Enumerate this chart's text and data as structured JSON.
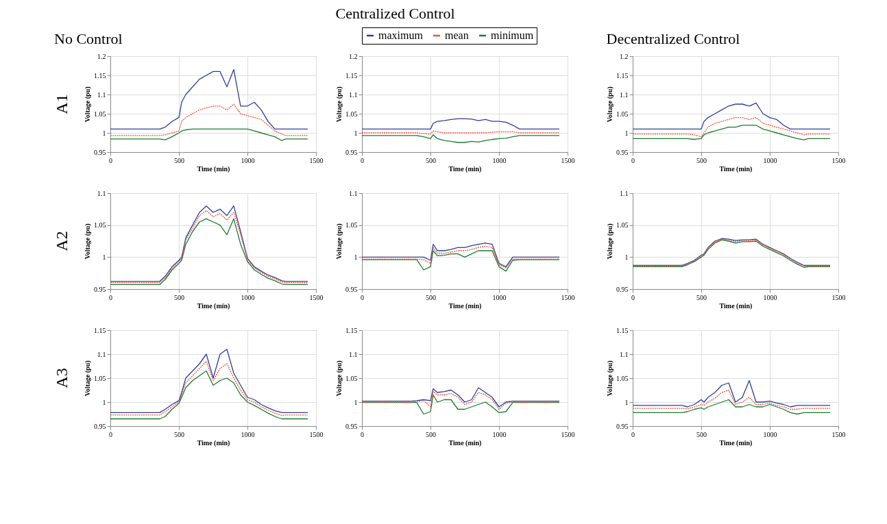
{
  "chart_data": [
    {
      "type": "line",
      "title": "No Control",
      "annotations": [
        "A1"
      ],
      "xlabel": "Time (min)",
      "ylabel": "Voltage (pu)",
      "x": [
        0,
        360,
        400,
        450,
        500,
        520,
        550,
        600,
        650,
        700,
        750,
        800,
        850,
        900,
        950,
        1000,
        1050,
        1100,
        1150,
        1200,
        1250,
        1280,
        1440
      ],
      "xlim": [
        0,
        1500
      ],
      "xticks": [
        0,
        500,
        1000,
        1500
      ],
      "ylim": [
        0.95,
        1.2
      ],
      "yticks": [
        0.95,
        1,
        1.05,
        1.1,
        1.15,
        1.2
      ],
      "grid": true,
      "series": [
        {
          "color": "#2b3d9f",
          "line_style": "solid",
          "values": [
            1.01,
            1.01,
            1.015,
            1.03,
            1.04,
            1.08,
            1.1,
            1.12,
            1.14,
            1.15,
            1.16,
            1.16,
            1.12,
            1.165,
            1.07,
            1.07,
            1.08,
            1.06,
            1.03,
            1.01,
            1.01,
            1.01,
            1.01
          ]
        },
        {
          "color": "#f0503c",
          "line_style": "dotted",
          "values": [
            0.993,
            0.993,
            0.995,
            1.0,
            1.005,
            1.03,
            1.04,
            1.05,
            1.06,
            1.065,
            1.07,
            1.07,
            1.06,
            1.075,
            1.05,
            1.045,
            1.04,
            1.035,
            1.02,
            1.005,
            0.997,
            0.993,
            0.993
          ]
        },
        {
          "color": "#1a7a2e",
          "line_style": "solid",
          "values": [
            0.984,
            0.984,
            0.982,
            0.99,
            1.0,
            1.005,
            1.008,
            1.01,
            1.01,
            1.01,
            1.01,
            1.01,
            1.01,
            1.01,
            1.01,
            1.01,
            1.005,
            1.0,
            0.995,
            0.99,
            0.98,
            0.984,
            0.984
          ]
        }
      ]
    },
    {
      "type": "line",
      "title": "Centralized Control",
      "xlabel": "Time (min)",
      "ylabel": "Voltage (pu)",
      "x": [
        0,
        360,
        400,
        450,
        500,
        520,
        550,
        600,
        650,
        700,
        750,
        800,
        850,
        900,
        950,
        1000,
        1050,
        1100,
        1150,
        1200,
        1250,
        1280,
        1440
      ],
      "xlim": [
        0,
        1500
      ],
      "xticks": [
        0,
        500,
        1000,
        1500
      ],
      "ylim": [
        0.95,
        1.2
      ],
      "yticks": [
        0.95,
        1,
        1.05,
        1.1,
        1.15,
        1.2
      ],
      "grid": true,
      "legend": "top",
      "series": [
        {
          "name": "maximum",
          "color": "#2b3d9f",
          "line_style": "solid",
          "values": [
            1.01,
            1.01,
            1.01,
            1.01,
            1.01,
            1.025,
            1.03,
            1.032,
            1.035,
            1.037,
            1.037,
            1.036,
            1.032,
            1.035,
            1.03,
            1.03,
            1.028,
            1.02,
            1.01,
            1.01,
            1.01,
            1.01,
            1.01
          ]
        },
        {
          "name": "mean",
          "color": "#f0503c",
          "line_style": "dotted",
          "values": [
            1.0,
            1.0,
            1.0,
            0.998,
            0.997,
            1.005,
            1.003,
            1.0,
            1.0,
            1.0,
            1.0,
            1.0,
            1.0,
            1.0,
            1.002,
            1.003,
            1.003,
            1.003,
            1.0,
            1.0,
            1.0,
            1.0,
            1.0
          ]
        },
        {
          "name": "minimum",
          "color": "#1a7a2e",
          "line_style": "solid",
          "values": [
            0.993,
            0.993,
            0.993,
            0.99,
            0.985,
            0.995,
            0.985,
            0.98,
            0.978,
            0.975,
            0.975,
            0.978,
            0.976,
            0.98,
            0.983,
            0.985,
            0.986,
            0.99,
            0.993,
            0.993,
            0.993,
            0.993,
            0.993
          ]
        }
      ]
    },
    {
      "type": "line",
      "title": "Decentralized Control",
      "xlabel": "Time (min)",
      "ylabel": "Voltage (pu)",
      "x": [
        0,
        360,
        400,
        450,
        500,
        520,
        550,
        600,
        650,
        700,
        750,
        800,
        850,
        900,
        950,
        1000,
        1050,
        1100,
        1150,
        1200,
        1250,
        1280,
        1440
      ],
      "xlim": [
        0,
        1500
      ],
      "xticks": [
        0,
        500,
        1000,
        1500
      ],
      "ylim": [
        0.95,
        1.2
      ],
      "yticks": [
        0.95,
        1,
        1.05,
        1.1,
        1.15,
        1.2
      ],
      "grid": true,
      "series": [
        {
          "color": "#2b3d9f",
          "line_style": "solid",
          "values": [
            1.01,
            1.01,
            1.01,
            1.01,
            1.01,
            1.03,
            1.04,
            1.05,
            1.06,
            1.07,
            1.075,
            1.075,
            1.07,
            1.078,
            1.05,
            1.04,
            1.035,
            1.02,
            1.01,
            1.01,
            1.01,
            1.01,
            1.01
          ]
        },
        {
          "color": "#f0503c",
          "line_style": "dotted",
          "values": [
            0.997,
            0.997,
            0.997,
            0.995,
            0.99,
            1.0,
            1.015,
            1.025,
            1.03,
            1.035,
            1.04,
            1.04,
            1.035,
            1.04,
            1.025,
            1.02,
            1.015,
            1.01,
            1.005,
            1.0,
            0.995,
            0.997,
            0.997
          ]
        },
        {
          "color": "#1a7a2e",
          "line_style": "solid",
          "values": [
            0.985,
            0.985,
            0.985,
            0.983,
            0.985,
            0.995,
            1.0,
            1.005,
            1.01,
            1.015,
            1.015,
            1.02,
            1.02,
            1.02,
            1.01,
            1.005,
            1.0,
            0.995,
            0.99,
            0.985,
            0.982,
            0.985,
            0.985
          ]
        }
      ]
    },
    {
      "type": "line",
      "annotations": [
        "A2"
      ],
      "xlabel": "Time (min)",
      "ylabel": "Voltage (pu)",
      "x": [
        0,
        360,
        400,
        450,
        500,
        520,
        550,
        600,
        650,
        700,
        750,
        800,
        850,
        900,
        950,
        1000,
        1050,
        1100,
        1150,
        1200,
        1250,
        1280,
        1440
      ],
      "xlim": [
        0,
        1500
      ],
      "xticks": [
        0,
        500,
        1000,
        1500
      ],
      "ylim": [
        0.95,
        1.1
      ],
      "yticks": [
        0.95,
        1,
        1.05,
        1.1
      ],
      "grid": true,
      "series": [
        {
          "color": "#2b3d9f",
          "line_style": "solid",
          "values": [
            0.962,
            0.962,
            0.97,
            0.985,
            0.995,
            1.0,
            1.03,
            1.05,
            1.07,
            1.08,
            1.07,
            1.075,
            1.065,
            1.08,
            1.04,
            0.998,
            0.985,
            0.978,
            0.972,
            0.968,
            0.963,
            0.962,
            0.962
          ]
        },
        {
          "color": "#f0503c",
          "line_style": "dotted",
          "values": [
            0.96,
            0.96,
            0.968,
            0.982,
            0.993,
            0.998,
            1.027,
            1.045,
            1.065,
            1.073,
            1.063,
            1.068,
            1.058,
            1.07,
            1.035,
            0.996,
            0.983,
            0.976,
            0.97,
            0.966,
            0.961,
            0.96,
            0.96
          ]
        },
        {
          "color": "#1a7a2e",
          "line_style": "solid",
          "values": [
            0.957,
            0.957,
            0.965,
            0.98,
            0.99,
            0.995,
            1.02,
            1.04,
            1.055,
            1.06,
            1.055,
            1.05,
            1.035,
            1.06,
            1.02,
            0.993,
            0.98,
            0.973,
            0.967,
            0.963,
            0.958,
            0.957,
            0.957
          ]
        }
      ]
    },
    {
      "type": "line",
      "xlabel": "Time (min)",
      "ylabel": "Voltage (pu)",
      "x": [
        0,
        360,
        400,
        450,
        500,
        520,
        550,
        600,
        650,
        700,
        750,
        800,
        850,
        900,
        950,
        1000,
        1050,
        1100,
        1150,
        1200,
        1250,
        1280,
        1440
      ],
      "xlim": [
        0,
        1500
      ],
      "xticks": [
        0,
        500,
        1000,
        1500
      ],
      "ylim": [
        0.95,
        1.1
      ],
      "yticks": [
        0.95,
        1,
        1.05,
        1.1
      ],
      "grid": true,
      "series": [
        {
          "color": "#2b3d9f",
          "line_style": "solid",
          "values": [
            1.0,
            1.0,
            1.0,
            1.0,
            0.995,
            1.02,
            1.01,
            1.01,
            1.012,
            1.015,
            1.015,
            1.018,
            1.02,
            1.022,
            1.02,
            0.99,
            0.985,
            1.0,
            1.0,
            1.0,
            1.0,
            1.0,
            1.0
          ]
        },
        {
          "color": "#f0503c",
          "line_style": "dotted",
          "values": [
            0.997,
            0.997,
            0.997,
            0.996,
            0.99,
            1.015,
            1.006,
            1.006,
            1.008,
            1.01,
            1.01,
            1.012,
            1.015,
            1.017,
            1.015,
            0.988,
            0.983,
            0.997,
            0.997,
            0.997,
            0.997,
            0.997,
            0.997
          ]
        },
        {
          "color": "#1a7a2e",
          "line_style": "solid",
          "values": [
            0.996,
            0.996,
            0.996,
            0.98,
            0.985,
            1.01,
            1.002,
            1.003,
            1.005,
            1.005,
            1.0,
            1.005,
            1.01,
            1.01,
            1.01,
            0.985,
            0.978,
            0.995,
            0.996,
            0.996,
            0.996,
            0.996,
            0.996
          ]
        }
      ]
    },
    {
      "type": "line",
      "xlabel": "Time (min)",
      "ylabel": "Voltage (pu)",
      "x": [
        0,
        360,
        400,
        450,
        500,
        520,
        550,
        600,
        650,
        700,
        750,
        800,
        850,
        900,
        950,
        1000,
        1050,
        1100,
        1150,
        1200,
        1250,
        1280,
        1440
      ],
      "xlim": [
        0,
        1500
      ],
      "xticks": [
        0,
        500,
        1000,
        1500
      ],
      "ylim": [
        0.95,
        1.1
      ],
      "yticks": [
        0.95,
        1,
        1.05,
        1.1
      ],
      "grid": true,
      "series": [
        {
          "color": "#2b3d9f",
          "line_style": "solid",
          "values": [
            0.987,
            0.987,
            0.99,
            0.995,
            1.003,
            1.005,
            1.015,
            1.025,
            1.029,
            1.028,
            1.026,
            1.027,
            1.027,
            1.028,
            1.02,
            1.015,
            1.01,
            1.005,
            0.998,
            0.992,
            0.987,
            0.987,
            0.987
          ]
        },
        {
          "color": "#f0503c",
          "line_style": "dotted",
          "values": [
            0.986,
            0.986,
            0.989,
            0.994,
            1.002,
            1.004,
            1.014,
            1.024,
            1.028,
            1.027,
            1.024,
            1.026,
            1.026,
            1.027,
            1.019,
            1.014,
            1.009,
            1.004,
            0.997,
            0.991,
            0.986,
            0.986,
            0.986
          ]
        },
        {
          "color": "#1a7a2e",
          "line_style": "solid",
          "values": [
            0.985,
            0.985,
            0.988,
            0.993,
            1.0,
            1.003,
            1.012,
            1.022,
            1.027,
            1.025,
            1.022,
            1.024,
            1.024,
            1.025,
            1.017,
            1.012,
            1.007,
            1.002,
            0.995,
            0.989,
            0.984,
            0.985,
            0.985
          ]
        }
      ]
    },
    {
      "type": "line",
      "annotations": [
        "A3"
      ],
      "xlabel": "Time (min)",
      "ylabel": "Voltage (pu)",
      "x": [
        0,
        360,
        400,
        450,
        500,
        520,
        550,
        600,
        650,
        700,
        750,
        800,
        850,
        900,
        950,
        1000,
        1050,
        1100,
        1150,
        1200,
        1250,
        1280,
        1440
      ],
      "xlim": [
        0,
        1500
      ],
      "xticks": [
        0,
        500,
        1000,
        1500
      ],
      "ylim": [
        0.95,
        1.15
      ],
      "yticks": [
        0.95,
        1,
        1.05,
        1.1,
        1.15
      ],
      "grid": true,
      "series": [
        {
          "color": "#2b3d9f",
          "line_style": "solid",
          "values": [
            0.978,
            0.978,
            0.985,
            0.995,
            1.003,
            1.02,
            1.05,
            1.065,
            1.08,
            1.1,
            1.05,
            1.1,
            1.11,
            1.06,
            1.035,
            1.01,
            1.005,
            0.995,
            0.988,
            0.982,
            0.978,
            0.978,
            0.978
          ]
        },
        {
          "color": "#f0503c",
          "line_style": "dotted",
          "values": [
            0.973,
            0.973,
            0.98,
            0.99,
            1.0,
            1.015,
            1.04,
            1.055,
            1.07,
            1.085,
            1.045,
            1.07,
            1.08,
            1.05,
            1.025,
            1.005,
            1.0,
            0.99,
            0.983,
            0.977,
            0.972,
            0.973,
            0.973
          ]
        },
        {
          "color": "#1a7a2e",
          "line_style": "solid",
          "values": [
            0.965,
            0.965,
            0.97,
            0.985,
            0.997,
            1.01,
            1.03,
            1.045,
            1.055,
            1.065,
            1.035,
            1.045,
            1.05,
            1.04,
            1.015,
            1.0,
            0.993,
            0.985,
            0.977,
            0.97,
            0.965,
            0.965,
            0.965
          ]
        }
      ]
    },
    {
      "type": "line",
      "xlabel": "Time (min)",
      "ylabel": "Voltage (pu)",
      "x": [
        0,
        360,
        400,
        450,
        500,
        520,
        550,
        600,
        650,
        700,
        750,
        800,
        850,
        900,
        950,
        1000,
        1050,
        1100,
        1150,
        1200,
        1250,
        1280,
        1440
      ],
      "xlim": [
        0,
        1500
      ],
      "xticks": [
        0,
        500,
        1000,
        1500
      ],
      "ylim": [
        0.95,
        1.15
      ],
      "yticks": [
        0.95,
        1,
        1.05,
        1.1,
        1.15
      ],
      "grid": true,
      "series": [
        {
          "color": "#2b3d9f",
          "line_style": "solid",
          "values": [
            1.002,
            1.002,
            1.003,
            1.005,
            1.003,
            1.028,
            1.02,
            1.022,
            1.025,
            1.015,
            1.0,
            1.005,
            1.03,
            1.02,
            1.01,
            0.99,
            1.0,
            1.002,
            1.002,
            1.002,
            1.002,
            1.002,
            1.002
          ]
        },
        {
          "color": "#f0503c",
          "line_style": "dotted",
          "values": [
            1.0,
            1.0,
            1.001,
            1.003,
            0.99,
            1.022,
            1.015,
            1.015,
            1.018,
            1.01,
            0.995,
            1.0,
            1.02,
            1.015,
            1.005,
            0.985,
            0.998,
            1.0,
            1.0,
            1.0,
            1.0,
            1.0,
            1.0
          ]
        },
        {
          "color": "#1a7a2e",
          "line_style": "solid",
          "values": [
            0.999,
            0.999,
            0.999,
            0.975,
            0.98,
            1.015,
            1.0,
            1.005,
            1.005,
            0.985,
            0.985,
            0.99,
            0.995,
            1.0,
            0.99,
            0.978,
            0.98,
            0.999,
            0.999,
            0.999,
            0.999,
            0.999,
            0.999
          ]
        }
      ]
    },
    {
      "type": "line",
      "xlabel": "Time (min)",
      "ylabel": "Voltage (pu)",
      "x": [
        0,
        360,
        400,
        450,
        500,
        520,
        550,
        600,
        650,
        700,
        750,
        800,
        850,
        900,
        950,
        1000,
        1050,
        1100,
        1150,
        1200,
        1250,
        1280,
        1440
      ],
      "xlim": [
        0,
        1500
      ],
      "xticks": [
        0,
        500,
        1000,
        1500
      ],
      "ylim": [
        0.95,
        1.15
      ],
      "yticks": [
        0.95,
        1,
        1.05,
        1.1,
        1.15
      ],
      "grid": true,
      "series": [
        {
          "color": "#2b3d9f",
          "line_style": "solid",
          "values": [
            0.993,
            0.993,
            0.99,
            0.995,
            1.005,
            1.0,
            1.01,
            1.02,
            1.035,
            1.04,
            1.0,
            1.01,
            1.045,
            1.0,
            1.0,
            1.002,
            0.998,
            0.995,
            0.99,
            0.993,
            0.993,
            0.993,
            0.993
          ]
        },
        {
          "color": "#f0503c",
          "line_style": "dotted",
          "values": [
            0.987,
            0.987,
            0.986,
            0.99,
            0.995,
            0.993,
            1.0,
            1.008,
            1.02,
            1.025,
            0.995,
            1.0,
            1.01,
            0.995,
            0.995,
            0.998,
            0.993,
            0.99,
            0.985,
            0.985,
            0.987,
            0.987,
            0.987
          ]
        },
        {
          "color": "#1a7a2e",
          "line_style": "solid",
          "values": [
            0.978,
            0.978,
            0.98,
            0.985,
            0.988,
            0.985,
            0.99,
            0.995,
            1.0,
            1.005,
            0.99,
            0.99,
            0.995,
            0.99,
            0.99,
            0.995,
            0.99,
            0.985,
            0.978,
            0.975,
            0.978,
            0.978,
            0.978
          ]
        }
      ]
    }
  ]
}
